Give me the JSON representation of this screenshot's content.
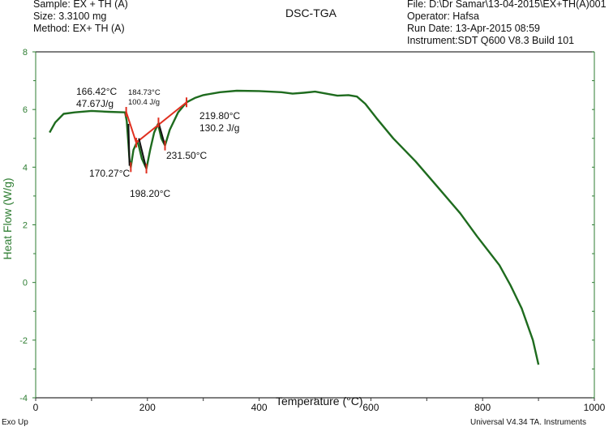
{
  "header": {
    "left": {
      "sample": "Sample: EX + TH (A)",
      "size": "Size:  3.3100 mg",
      "method": "Method: EX+ TH (A)"
    },
    "title": "DSC-TGA",
    "right": {
      "file": "File: D:\\Dr Samar\\13-04-2015\\EX+TH(A)001",
      "operator": "Operator: Hafsa",
      "run_date": "Run Date: 13-Apr-2015 08:59",
      "instrument": "Instrument:SDT Q600 V8.3 Build 101"
    }
  },
  "footer": {
    "exo": "Exo Up",
    "software": "Universal V4.34 TA. Instruments"
  },
  "colors": {
    "curve": "#1e6b1e",
    "integration": "#e03020",
    "tangent": "#111111",
    "y_axis": "#2e7d32",
    "frame": "#333333"
  },
  "chart_data": {
    "type": "line",
    "title": "DSC-TGA",
    "xlabel": "Temperature (°C)",
    "ylabel": "Heat Flow (W/g)",
    "xlim": [
      0,
      1000
    ],
    "ylim": [
      -4,
      8
    ],
    "x_ticks": [
      0,
      200,
      400,
      600,
      800,
      1000
    ],
    "y_ticks": [
      -4,
      -2,
      0,
      2,
      4,
      6,
      8
    ],
    "grid": false,
    "series": [
      {
        "name": "Heat Flow",
        "x": [
          25,
          35,
          50,
          70,
          100,
          130,
          160,
          163,
          166,
          168,
          170.3,
          175,
          182,
          185,
          190,
          198.2,
          205,
          212,
          219,
          225,
          231.5,
          240,
          255,
          270,
          285,
          300,
          330,
          360,
          400,
          440,
          460,
          480,
          500,
          520,
          540,
          560,
          575,
          590,
          610,
          640,
          680,
          720,
          760,
          790,
          810,
          830,
          850,
          870,
          890,
          900
        ],
        "y": [
          5.2,
          5.55,
          5.85,
          5.9,
          5.95,
          5.92,
          5.9,
          5.6,
          4.8,
          4.2,
          4.0,
          4.6,
          4.9,
          4.7,
          4.3,
          3.95,
          4.6,
          5.2,
          5.5,
          5.0,
          4.75,
          5.3,
          5.9,
          6.25,
          6.4,
          6.5,
          6.6,
          6.65,
          6.64,
          6.6,
          6.55,
          6.58,
          6.62,
          6.55,
          6.48,
          6.5,
          6.45,
          6.2,
          5.7,
          5.0,
          4.2,
          3.3,
          2.4,
          1.6,
          1.1,
          0.6,
          -0.1,
          -0.9,
          -2.0,
          -2.85
        ]
      }
    ],
    "annotations": [
      {
        "label": "166.42°C",
        "label2": "47.67J/g",
        "type": "peak_onset_enthalpy"
      },
      {
        "label": "184.73°C",
        "label2": "100.4 J/g",
        "type": "peak_onset_enthalpy"
      },
      {
        "label": "219.80°C",
        "label2": "130.2 J/g",
        "type": "peak_onset_enthalpy"
      },
      {
        "label": "170.27°C",
        "type": "peak_minimum"
      },
      {
        "label": "198.20°C",
        "type": "peak_minimum"
      },
      {
        "label": "231.50°C",
        "type": "peak_minimum"
      }
    ]
  }
}
